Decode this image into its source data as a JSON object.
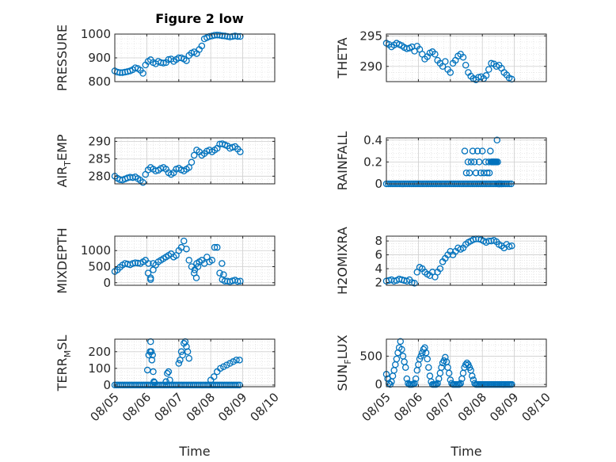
{
  "figure_title": "Figure 2 low",
  "colors": {
    "marker": "#0072BD",
    "grid": "#d9d9d9",
    "axis": "#262626"
  },
  "chart_data": [
    {
      "type": "scatter",
      "title": "Figure 2 low",
      "ylabel": "PRESSURE",
      "ylabel_sub": "",
      "xlabel": "",
      "ylim": [
        800,
        1000
      ],
      "yticks": [
        800,
        900,
        1000
      ],
      "xlim": [
        "08/05",
        "08/10"
      ],
      "xticks": [
        "08/05",
        "08/06",
        "08/07",
        "08/08",
        "08/09",
        "08/10"
      ],
      "show_xtick_labels": false,
      "grid": true,
      "marker": "o",
      "x": [
        0.0,
        0.08,
        0.16,
        0.24,
        0.32,
        0.4,
        0.48,
        0.56,
        0.64,
        0.72,
        0.8,
        0.88,
        0.96,
        1.04,
        1.12,
        1.2,
        1.28,
        1.36,
        1.44,
        1.52,
        1.6,
        1.68,
        1.76,
        1.84,
        1.92,
        2.0,
        2.08,
        2.16,
        2.24,
        2.32,
        2.4,
        2.48,
        2.56,
        2.64,
        2.72,
        2.8,
        2.88,
        2.96,
        3.04,
        3.12,
        3.2,
        3.28,
        3.36,
        3.44,
        3.52,
        3.6,
        3.68,
        3.76,
        3.84,
        3.92
      ],
      "y": [
        845,
        840,
        838,
        838,
        840,
        842,
        845,
        850,
        858,
        855,
        848,
        835,
        870,
        885,
        892,
        880,
        875,
        885,
        880,
        878,
        880,
        893,
        895,
        885,
        893,
        900,
        900,
        895,
        888,
        910,
        920,
        925,
        918,
        935,
        950,
        980,
        985,
        990,
        992,
        995,
        996,
        995,
        993,
        992,
        990,
        988,
        990,
        992,
        990,
        990
      ]
    },
    {
      "type": "scatter",
      "ylabel": "THETA",
      "ylabel_sub": "",
      "xlabel": "",
      "ylim": [
        287.5,
        295.3
      ],
      "yticks": [
        290,
        295
      ],
      "xlim": [
        "08/05",
        "08/10"
      ],
      "xticks": [
        "08/05",
        "08/06",
        "08/07",
        "08/08",
        "08/09",
        "08/10"
      ],
      "show_xtick_labels": false,
      "grid": true,
      "marker": "o",
      "x": [
        0.0,
        0.08,
        0.16,
        0.24,
        0.32,
        0.4,
        0.48,
        0.56,
        0.64,
        0.72,
        0.8,
        0.88,
        0.96,
        1.04,
        1.12,
        1.2,
        1.28,
        1.36,
        1.44,
        1.52,
        1.6,
        1.68,
        1.76,
        1.84,
        1.92,
        2.0,
        2.08,
        2.16,
        2.24,
        2.32,
        2.4,
        2.48,
        2.56,
        2.64,
        2.72,
        2.8,
        2.88,
        2.96,
        3.04,
        3.12,
        3.2,
        3.28,
        3.36,
        3.44,
        3.52,
        3.6,
        3.68,
        3.76,
        3.84,
        3.92
      ],
      "y": [
        293.8,
        293.6,
        293.2,
        293.5,
        293.8,
        293.6,
        293.4,
        293.1,
        292.9,
        293.0,
        293.2,
        292.5,
        293.3,
        292.8,
        292.0,
        291.2,
        291.6,
        292.2,
        292.4,
        292.0,
        291.0,
        290.5,
        290.0,
        290.8,
        289.5,
        289.0,
        290.5,
        291.0,
        291.7,
        292.0,
        291.5,
        290.2,
        289.0,
        288.4,
        288.0,
        287.8,
        288.2,
        288.3,
        288.0,
        288.5,
        289.5,
        290.5,
        290.4,
        290.0,
        290.2,
        289.7,
        289.0,
        288.6,
        288.1,
        287.9
      ]
    },
    {
      "type": "scatter",
      "ylabel": "AIR",
      "ylabel_sub": "T",
      "ylabel_suffix": "EMP",
      "xlabel": "",
      "ylim": [
        277.8,
        291
      ],
      "yticks": [
        280,
        285,
        290
      ],
      "xlim": [
        "08/05",
        "08/10"
      ],
      "xticks": [
        "08/05",
        "08/06",
        "08/07",
        "08/08",
        "08/09",
        "08/10"
      ],
      "show_xtick_labels": false,
      "grid": true,
      "marker": "o",
      "x": [
        0.0,
        0.08,
        0.16,
        0.24,
        0.32,
        0.4,
        0.48,
        0.56,
        0.64,
        0.72,
        0.8,
        0.88,
        0.96,
        1.04,
        1.12,
        1.2,
        1.28,
        1.36,
        1.44,
        1.52,
        1.6,
        1.68,
        1.76,
        1.84,
        1.92,
        2.0,
        2.08,
        2.16,
        2.24,
        2.32,
        2.4,
        2.48,
        2.56,
        2.64,
        2.72,
        2.8,
        2.88,
        2.96,
        3.04,
        3.12,
        3.2,
        3.28,
        3.36,
        3.44,
        3.52,
        3.6,
        3.68,
        3.76,
        3.84,
        3.92
      ],
      "y": [
        280.0,
        279.4,
        279.0,
        278.9,
        279.2,
        279.5,
        279.7,
        279.6,
        279.8,
        279.3,
        278.8,
        278.2,
        280.5,
        281.8,
        282.5,
        282.0,
        281.5,
        281.7,
        282.2,
        282.5,
        282.0,
        281.0,
        280.5,
        281.0,
        282.0,
        282.3,
        281.8,
        281.5,
        282.0,
        282.5,
        284.0,
        286.0,
        287.5,
        287.0,
        286.0,
        286.5,
        287.2,
        287.5,
        287.0,
        287.5,
        288.0,
        289.2,
        289.3,
        289.0,
        288.7,
        288.0,
        288.3,
        288.5,
        287.8,
        287.0
      ]
    },
    {
      "type": "scatter",
      "ylabel": "RAINFALL",
      "ylabel_sub": "",
      "xlabel": "",
      "ylim": [
        0,
        0.42
      ],
      "yticks": [
        0,
        0.2,
        0.4
      ],
      "xlim": [
        "08/05",
        "08/10"
      ],
      "xticks": [
        "08/05",
        "08/06",
        "08/07",
        "08/08",
        "08/09",
        "08/10"
      ],
      "show_xtick_labels": false,
      "grid": true,
      "marker": "o",
      "x": [
        0.0,
        0.06,
        0.12,
        0.18,
        0.24,
        0.3,
        0.36,
        0.42,
        0.48,
        0.54,
        0.6,
        0.66,
        0.72,
        0.78,
        0.84,
        0.9,
        0.96,
        1.02,
        1.08,
        1.14,
        1.2,
        1.26,
        1.32,
        1.38,
        1.44,
        1.5,
        1.56,
        1.62,
        1.68,
        1.74,
        1.8,
        1.86,
        1.92,
        1.98,
        2.04,
        2.1,
        2.16,
        2.22,
        2.28,
        2.34,
        2.4,
        2.46,
        2.52,
        2.58,
        2.64,
        2.7,
        2.76,
        2.82,
        2.88,
        2.94,
        3.0,
        3.06,
        3.12,
        3.18,
        3.24,
        3.3,
        3.36,
        3.42,
        3.48,
        3.54,
        3.6,
        3.66,
        3.72,
        3.78,
        3.84,
        3.9,
        2.55,
        2.6,
        2.65,
        2.7,
        2.75,
        2.5,
        2.45,
        2.8,
        2.85,
        2.9,
        2.95,
        3.0,
        3.05,
        3.1,
        3.15,
        3.2,
        3.25,
        3.22,
        3.28,
        3.3,
        3.32,
        3.34,
        3.36,
        3.38,
        3.4,
        3.42,
        3.44,
        3.46,
        3.48,
        3.5,
        3.52,
        3.55,
        3.6
      ],
      "y": [
        0,
        0,
        0,
        0,
        0,
        0,
        0,
        0,
        0,
        0,
        0,
        0,
        0,
        0,
        0,
        0,
        0,
        0,
        0,
        0,
        0,
        0,
        0,
        0,
        0,
        0,
        0,
        0,
        0,
        0,
        0,
        0,
        0,
        0,
        0,
        0,
        0,
        0,
        0,
        0,
        0,
        0,
        0,
        0,
        0,
        0,
        0,
        0,
        0,
        0,
        0,
        0,
        0,
        0,
        0,
        0,
        0,
        0,
        0,
        0,
        0,
        0,
        0,
        0,
        0,
        0,
        0.2,
        0.1,
        0.2,
        0.3,
        0.2,
        0.1,
        0.3,
        0.1,
        0.3,
        0.2,
        0.1,
        0.3,
        0.1,
        0.2,
        0.1,
        0.2,
        0.3,
        0.1,
        0.2,
        0.2,
        0.2,
        0.2,
        0.2,
        0.2,
        0.2,
        0.2,
        0.2,
        0.4,
        0.2,
        0,
        0,
        0,
        0
      ]
    },
    {
      "type": "scatter",
      "ylabel": "MIXDEPTH",
      "ylabel_sub": "",
      "xlabel": "",
      "ylim": [
        -80,
        1450
      ],
      "yticks": [
        0,
        500,
        1000
      ],
      "xlim": [
        "08/05",
        "08/10"
      ],
      "xticks": [
        "08/05",
        "08/06",
        "08/07",
        "08/08",
        "08/09",
        "08/10"
      ],
      "show_xtick_labels": false,
      "grid": true,
      "marker": "o",
      "x": [
        0.0,
        0.08,
        0.16,
        0.24,
        0.32,
        0.4,
        0.48,
        0.56,
        0.64,
        0.72,
        0.8,
        0.88,
        0.96,
        1.04,
        1.12,
        1.2,
        1.28,
        1.36,
        1.44,
        1.52,
        1.6,
        1.68,
        1.76,
        1.84,
        1.92,
        2.0,
        2.08,
        2.16,
        2.24,
        2.32,
        2.4,
        2.48,
        2.56,
        2.64,
        2.72,
        2.8,
        2.88,
        2.96,
        3.04,
        3.12,
        3.2,
        3.28,
        3.36,
        3.44,
        3.52,
        3.6,
        3.68,
        3.76,
        3.84,
        3.92,
        1.05,
        1.12,
        1.2,
        2.5,
        2.55,
        2.6,
        3.35,
        3.4
      ],
      "y": [
        350,
        400,
        480,
        550,
        600,
        580,
        560,
        600,
        620,
        610,
        600,
        650,
        700,
        300,
        150,
        600,
        550,
        650,
        700,
        750,
        800,
        850,
        900,
        800,
        850,
        1000,
        1100,
        1300,
        1050,
        700,
        500,
        300,
        600,
        650,
        700,
        600,
        800,
        650,
        700,
        1100,
        1100,
        300,
        100,
        50,
        50,
        30,
        60,
        80,
        40,
        50,
        600,
        100,
        400,
        400,
        150,
        500,
        600,
        250
      ]
    },
    {
      "type": "scatter",
      "ylabel": "H2OMIXRA",
      "ylabel_sub": "",
      "xlabel": "",
      "ylim": [
        1.6,
        8.7
      ],
      "yticks": [
        2,
        4,
        6,
        8
      ],
      "xlim": [
        "08/05",
        "08/10"
      ],
      "xticks": [
        "08/05",
        "08/06",
        "08/07",
        "08/08",
        "08/09",
        "08/10"
      ],
      "show_xtick_labels": false,
      "grid": true,
      "marker": "o",
      "x": [
        0.0,
        0.08,
        0.16,
        0.24,
        0.32,
        0.4,
        0.48,
        0.56,
        0.64,
        0.72,
        0.8,
        0.88,
        0.96,
        1.04,
        1.12,
        1.2,
        1.28,
        1.36,
        1.44,
        1.52,
        1.6,
        1.68,
        1.76,
        1.84,
        1.92,
        2.0,
        2.08,
        2.16,
        2.24,
        2.32,
        2.4,
        2.48,
        2.56,
        2.64,
        2.72,
        2.8,
        2.88,
        2.96,
        3.04,
        3.12,
        3.2,
        3.28,
        3.36,
        3.44,
        3.52,
        3.6,
        3.68,
        3.76,
        3.84,
        3.92
      ],
      "y": [
        2.2,
        2.3,
        2.4,
        2.2,
        2.3,
        2.5,
        2.4,
        2.3,
        2.2,
        2.4,
        2.0,
        1.9,
        3.5,
        4.2,
        4.0,
        3.5,
        3.2,
        3.0,
        3.5,
        2.8,
        3.5,
        4.0,
        5.0,
        5.5,
        6.0,
        6.5,
        6.0,
        6.5,
        7.0,
        6.8,
        7.0,
        7.5,
        7.8,
        8.0,
        8.2,
        8.3,
        8.3,
        8.2,
        8.0,
        7.8,
        8.0,
        8.0,
        8.1,
        7.9,
        7.5,
        7.3,
        7.0,
        7.5,
        7.2,
        7.3
      ]
    },
    {
      "type": "scatter",
      "ylabel": "TERR",
      "ylabel_sub": "M",
      "ylabel_suffix": "SL",
      "xlabel": "Time",
      "ylim": [
        -10,
        275
      ],
      "yticks": [
        0,
        100,
        200
      ],
      "xlim": [
        "08/05",
        "08/10"
      ],
      "xticks": [
        "08/05",
        "08/06",
        "08/07",
        "08/08",
        "08/09",
        "08/10"
      ],
      "show_xtick_labels": true,
      "grid": true,
      "marker": "o",
      "x": [
        0.0,
        0.06,
        0.12,
        0.18,
        0.24,
        0.3,
        0.36,
        0.42,
        0.48,
        0.54,
        0.6,
        0.66,
        0.72,
        0.78,
        0.84,
        0.9,
        0.96,
        1.02,
        1.08,
        1.14,
        1.2,
        1.26,
        1.32,
        1.38,
        1.44,
        1.5,
        1.56,
        1.62,
        1.68,
        1.74,
        1.8,
        1.86,
        1.92,
        1.98,
        2.04,
        2.1,
        2.16,
        2.22,
        2.28,
        2.34,
        2.4,
        2.46,
        2.52,
        2.58,
        2.64,
        2.7,
        2.76,
        2.82,
        2.88,
        2.94,
        3.0,
        3.06,
        3.12,
        3.18,
        3.24,
        3.3,
        3.36,
        3.42,
        3.48,
        3.54,
        3.6,
        3.66,
        3.72,
        3.78,
        3.84,
        3.9,
        1.02,
        1.06,
        1.1,
        1.12,
        1.14,
        1.16,
        1.18,
        1.2,
        1.22,
        1.6,
        1.64,
        1.68,
        1.72,
        2.0,
        2.04,
        2.08,
        2.12,
        2.16,
        2.2,
        2.24,
        2.28,
        2.32,
        3.0,
        3.1,
        3.2,
        3.3,
        3.4,
        3.5,
        3.6,
        3.7,
        3.8,
        3.9,
        1.24
      ],
      "y": [
        0,
        0,
        0,
        0,
        0,
        0,
        0,
        0,
        0,
        0,
        0,
        0,
        0,
        0,
        0,
        0,
        0,
        0,
        0,
        0,
        0,
        0,
        0,
        0,
        0,
        0,
        0,
        0,
        0,
        0,
        0,
        0,
        0,
        0,
        0,
        0,
        0,
        0,
        0,
        0,
        0,
        0,
        0,
        0,
        0,
        0,
        0,
        0,
        0,
        0,
        0,
        0,
        0,
        0,
        0,
        0,
        0,
        0,
        0,
        0,
        0,
        0,
        0,
        0,
        0,
        0,
        90,
        180,
        200,
        260,
        200,
        150,
        180,
        80,
        20,
        20,
        70,
        80,
        30,
        130,
        150,
        200,
        180,
        250,
        260,
        230,
        200,
        160,
        30,
        50,
        80,
        100,
        110,
        120,
        130,
        140,
        150,
        150,
        15
      ]
    },
    {
      "type": "scatter",
      "ylabel": "SUN",
      "ylabel_sub": "F",
      "ylabel_suffix": "LUX",
      "xlabel": "Time",
      "ylim": [
        -40,
        800
      ],
      "yticks": [
        0,
        500
      ],
      "xlim": [
        "08/05",
        "08/10"
      ],
      "xticks": [
        "08/05",
        "08/06",
        "08/07",
        "08/08",
        "08/09",
        "08/10"
      ],
      "show_xtick_labels": true,
      "grid": true,
      "marker": "o",
      "x": [
        0.0,
        0.04,
        0.08,
        0.12,
        0.16,
        0.2,
        0.24,
        0.28,
        0.32,
        0.36,
        0.4,
        0.44,
        0.48,
        0.52,
        0.56,
        0.6,
        0.64,
        0.68,
        0.72,
        0.76,
        0.8,
        0.84,
        0.88,
        0.92,
        0.96,
        1.0,
        1.04,
        1.08,
        1.12,
        1.16,
        1.2,
        1.24,
        1.28,
        1.32,
        1.36,
        1.4,
        1.44,
        1.48,
        1.52,
        1.56,
        1.6,
        1.64,
        1.68,
        1.72,
        1.76,
        1.8,
        1.84,
        1.88,
        1.92,
        1.96,
        2.0,
        2.04,
        2.08,
        2.12,
        2.16,
        2.2,
        2.24,
        2.28,
        2.32,
        2.36,
        2.4,
        2.44,
        2.48,
        2.52,
        2.56,
        2.6,
        2.64,
        2.68,
        2.72,
        2.76,
        2.8,
        2.84,
        2.88,
        2.92,
        2.96,
        3.0,
        3.04,
        3.08,
        3.12,
        3.16,
        3.2,
        3.24,
        3.28,
        3.32,
        3.36,
        3.4,
        3.44,
        3.48,
        3.52,
        3.56,
        3.6,
        3.64,
        3.68,
        3.72,
        3.76,
        3.8,
        3.84,
        3.88,
        3.92
      ],
      "y": [
        180,
        100,
        20,
        0,
        50,
        150,
        250,
        350,
        450,
        560,
        650,
        760,
        620,
        500,
        400,
        300,
        100,
        20,
        0,
        0,
        0,
        5,
        20,
        100,
        250,
        350,
        450,
        500,
        560,
        620,
        650,
        560,
        450,
        300,
        150,
        50,
        0,
        0,
        0,
        0,
        20,
        100,
        200,
        300,
        380,
        420,
        480,
        400,
        300,
        200,
        80,
        20,
        0,
        0,
        0,
        0,
        0,
        0,
        20,
        100,
        200,
        300,
        350,
        380,
        350,
        300,
        250,
        150,
        80,
        20,
        0,
        0,
        0,
        0,
        0,
        0,
        0,
        0,
        0,
        0,
        0,
        0,
        0,
        0,
        0,
        0,
        0,
        0,
        0,
        0,
        0,
        0,
        0,
        0,
        0,
        0,
        0,
        0,
        0
      ]
    }
  ]
}
